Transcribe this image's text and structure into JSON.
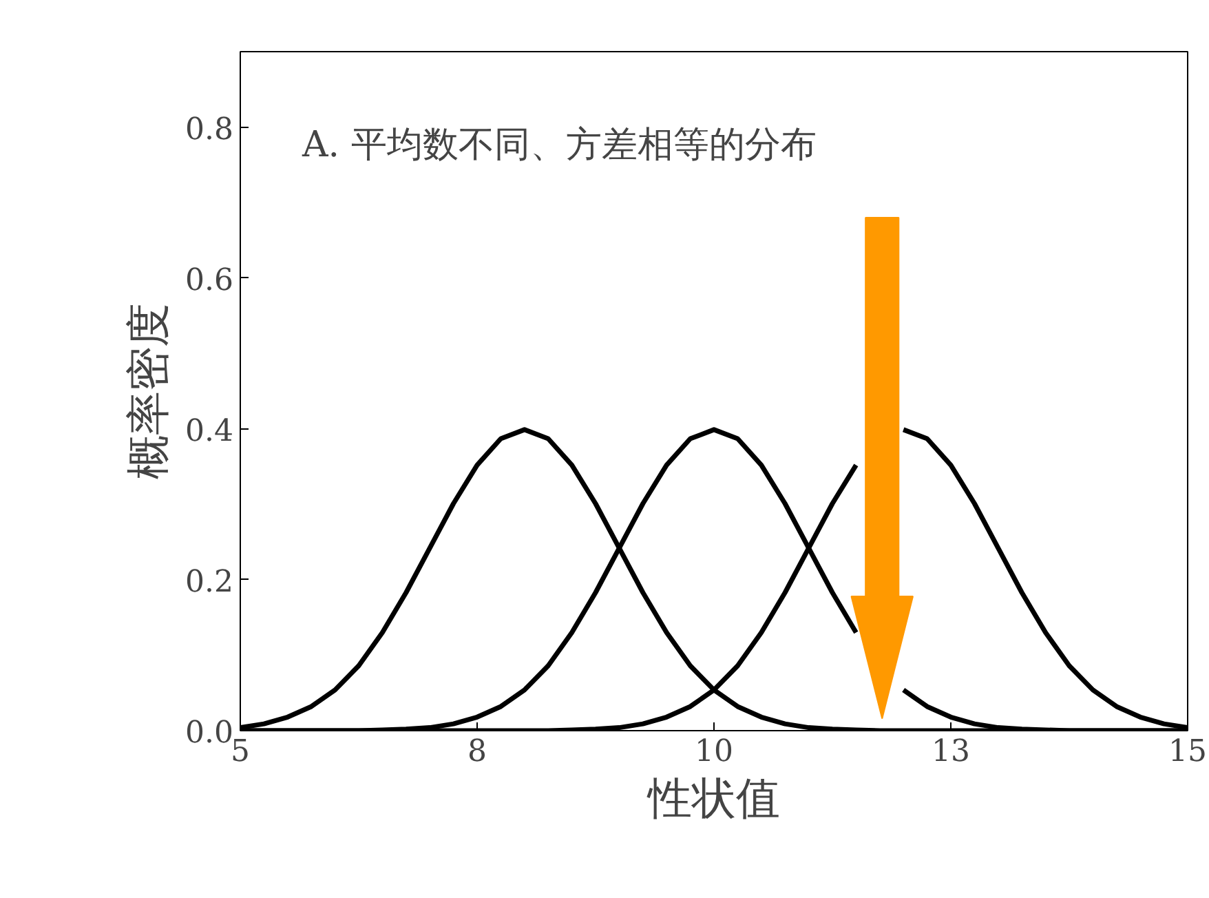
{
  "chart_data": {
    "type": "line",
    "xlabel": "性状值",
    "ylabel": "概率密度",
    "annotations": [
      "A. 平均数不同、方差相等的分布"
    ],
    "xlim": [
      5,
      15
    ],
    "xticks": [
      5,
      {
        "value": 7.5,
        "label": "8"
      },
      10,
      {
        "value": 12.5,
        "label": "13"
      },
      15
    ],
    "ylim": [
      0,
      0.9
    ],
    "yticks": [
      {
        "value": 0,
        "label": "0.0"
      },
      {
        "value": 0.2,
        "label": "0.2"
      },
      {
        "value": 0.4,
        "label": "0.4"
      },
      {
        "value": 0.6,
        "label": "0.6"
      },
      {
        "value": 0.8,
        "label": "0.8"
      }
    ],
    "grid": false,
    "marker": "none",
    "line_style": "solid",
    "x": [
      5,
      5.25,
      5.5,
      5.75,
      6,
      6.25,
      6.5,
      6.75,
      7,
      7.25,
      7.5,
      7.75,
      8,
      8.25,
      8.5,
      8.75,
      9,
      9.25,
      9.5,
      9.75,
      10,
      10.25,
      10.5,
      10.75,
      11,
      11.25,
      11.5,
      11.75,
      12,
      12.25,
      12.5,
      12.75,
      13,
      13.25,
      13.5,
      13.75,
      14,
      14.25,
      14.5,
      14.75,
      15
    ],
    "series": [
      {
        "color": "#000000",
        "values": [
          0.004,
          0.009,
          0.018,
          0.032,
          0.054,
          0.086,
          0.13,
          0.183,
          0.242,
          0.301,
          0.352,
          0.387,
          0.399,
          0.387,
          0.352,
          0.301,
          0.242,
          0.183,
          0.13,
          0.086,
          0.054,
          0.032,
          0.018,
          0.009,
          0.004,
          0.002,
          0.001,
          0,
          0,
          0,
          0,
          0,
          0,
          0,
          0,
          0,
          0,
          0,
          0,
          0,
          0
        ]
      },
      {
        "color": "#000000",
        "values": [
          0,
          0,
          0,
          0,
          0,
          0,
          0.001,
          0.002,
          0.004,
          0.009,
          0.018,
          0.032,
          0.054,
          0.086,
          0.13,
          0.183,
          0.242,
          0.301,
          0.352,
          0.387,
          0.399,
          0.387,
          0.352,
          0.301,
          0.242,
          0.183,
          0.13,
          null,
          0.054,
          0.032,
          0.018,
          0.009,
          0.004,
          0.002,
          0.001,
          0,
          0,
          0,
          0,
          0,
          0
        ]
      },
      {
        "color": "#000000",
        "values": [
          0,
          0,
          0,
          0,
          0,
          0,
          0,
          0,
          0,
          0,
          0,
          0,
          0,
          0,
          0.001,
          0.002,
          0.004,
          0.009,
          0.018,
          0.032,
          0.054,
          0.086,
          0.13,
          0.183,
          0.242,
          0.301,
          0.352,
          null,
          0.399,
          0.387,
          0.352,
          0.301,
          0.242,
          0.183,
          0.13,
          0.086,
          0.054,
          0.032,
          0.018,
          0.009,
          0.004
        ]
      }
    ]
  }
}
